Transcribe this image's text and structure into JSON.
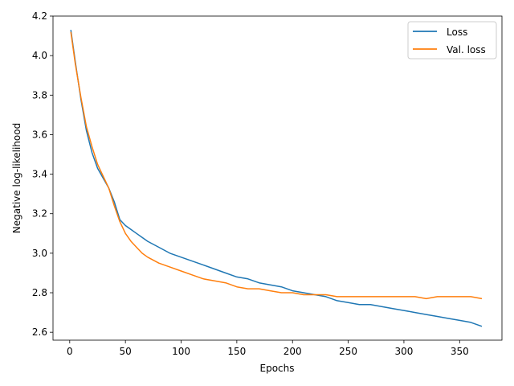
{
  "chart_data": {
    "type": "line",
    "xlabel": "Epochs",
    "ylabel": "Negative log-likelihood",
    "xlim": [
      -15,
      388
    ],
    "ylim": [
      2.56,
      4.2
    ],
    "xticks": [
      0,
      50,
      100,
      150,
      200,
      250,
      300,
      350
    ],
    "xtick_labels": [
      "0",
      "50",
      "100",
      "150",
      "200",
      "250",
      "300",
      "350"
    ],
    "yticks": [
      2.6,
      2.8,
      3.0,
      3.2,
      3.4,
      3.6,
      3.8,
      4.0,
      4.2
    ],
    "ytick_labels": [
      "2.6",
      "2.8",
      "3.0",
      "3.2",
      "3.4",
      "3.6",
      "3.8",
      "4.0",
      "4.2"
    ],
    "grid": false,
    "legend": "upper right",
    "series": [
      {
        "name": "Loss",
        "color": "#1f77b4",
        "x": [
          1,
          5,
          10,
          15,
          20,
          25,
          30,
          35,
          40,
          45,
          50,
          55,
          60,
          65,
          70,
          80,
          90,
          100,
          110,
          120,
          130,
          140,
          150,
          160,
          170,
          180,
          190,
          200,
          210,
          220,
          230,
          240,
          250,
          260,
          270,
          280,
          290,
          300,
          310,
          320,
          330,
          340,
          350,
          360,
          370
        ],
        "values": [
          4.13,
          3.97,
          3.78,
          3.62,
          3.51,
          3.43,
          3.38,
          3.33,
          3.26,
          3.17,
          3.14,
          3.12,
          3.1,
          3.08,
          3.06,
          3.03,
          3.0,
          2.98,
          2.96,
          2.94,
          2.92,
          2.9,
          2.88,
          2.87,
          2.85,
          2.84,
          2.83,
          2.81,
          2.8,
          2.79,
          2.78,
          2.76,
          2.75,
          2.74,
          2.74,
          2.73,
          2.72,
          2.71,
          2.7,
          2.69,
          2.68,
          2.67,
          2.66,
          2.65,
          2.63
        ]
      },
      {
        "name": "Val. loss",
        "color": "#ff7f0e",
        "x": [
          1,
          5,
          10,
          15,
          20,
          25,
          30,
          35,
          40,
          45,
          50,
          55,
          60,
          65,
          70,
          80,
          90,
          100,
          110,
          120,
          130,
          140,
          150,
          160,
          170,
          180,
          190,
          200,
          210,
          220,
          230,
          240,
          250,
          260,
          270,
          280,
          290,
          300,
          310,
          320,
          330,
          340,
          350,
          360,
          370
        ],
        "values": [
          4.12,
          3.96,
          3.79,
          3.64,
          3.54,
          3.45,
          3.39,
          3.33,
          3.24,
          3.16,
          3.1,
          3.06,
          3.03,
          3.0,
          2.98,
          2.95,
          2.93,
          2.91,
          2.89,
          2.87,
          2.86,
          2.85,
          2.83,
          2.82,
          2.82,
          2.81,
          2.8,
          2.8,
          2.79,
          2.79,
          2.79,
          2.78,
          2.78,
          2.78,
          2.78,
          2.78,
          2.78,
          2.78,
          2.78,
          2.77,
          2.78,
          2.78,
          2.78,
          2.78,
          2.77
        ]
      }
    ]
  }
}
